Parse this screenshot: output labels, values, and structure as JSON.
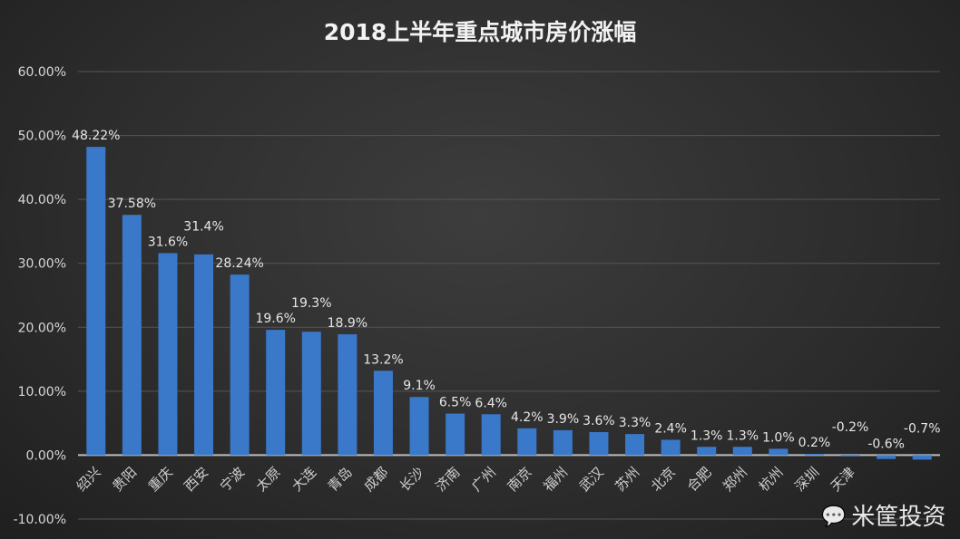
{
  "chart_data": {
    "type": "bar",
    "title": "2018上半年重点城市房价涨幅",
    "categories": [
      "绍兴",
      "贵阳",
      "重庆",
      "西安",
      "宁波",
      "太原",
      "大连",
      "青岛",
      "成都",
      "长沙",
      "济南",
      "广州",
      "南京",
      "福州",
      "武汉",
      "苏州",
      "北京",
      "合肥",
      "郑州",
      "杭州",
      "深圳",
      "天津",
      "",
      ""
    ],
    "values": [
      48.22,
      37.58,
      31.6,
      31.4,
      28.24,
      19.6,
      19.3,
      18.9,
      13.2,
      9.1,
      6.5,
      6.4,
      4.2,
      3.9,
      3.6,
      3.3,
      2.4,
      1.3,
      1.3,
      1.0,
      0.2,
      -0.2,
      -0.6,
      -0.7
    ],
    "data_labels": [
      "48.22%",
      "37.58%",
      "31.6%",
      "31.4%",
      "28.24%",
      "19.6%",
      "19.3%",
      "18.9%",
      "13.2%",
      "9.1%",
      "6.5%",
      "6.4%",
      "4.2%",
      "3.9%",
      "3.6%",
      "3.3%",
      "2.4%",
      "1.3%",
      "1.3%",
      "1.0%",
      "0.2%",
      "-0.2%",
      "-0.6%",
      "-0.7%"
    ],
    "ylim": [
      -10,
      60
    ],
    "yticks": [
      "-10.00%",
      "0.00%",
      "10.00%",
      "20.00%",
      "30.00%",
      "40.00%",
      "50.00%",
      "60.00%"
    ],
    "grid": true,
    "bar_color": "#3a78c9",
    "xlabel": "",
    "ylabel": ""
  },
  "watermark": "米筐投资"
}
